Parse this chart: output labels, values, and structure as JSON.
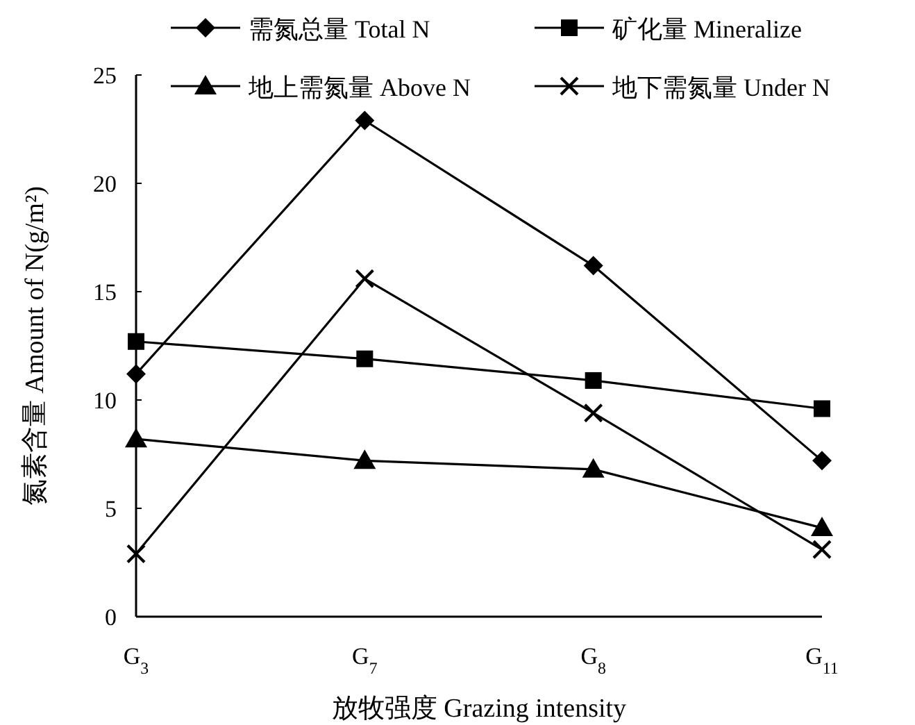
{
  "chart_data": {
    "type": "line",
    "xlabel": "放牧强度 Grazing intensity",
    "ylabel": "氮素含量 Amount of N(g/m²)",
    "categories": [
      "G$_{3}$",
      "G$_{7}$",
      "G$_{8}$",
      "G$_{11}$"
    ],
    "ylim": [
      0,
      25
    ],
    "yticks": [
      0,
      5,
      10,
      15,
      20,
      25
    ],
    "grid": false,
    "legend": "top",
    "line_style": "solid",
    "series": [
      {
        "name": "需氮总量 Total N",
        "color": "#000000",
        "marker": "diamond",
        "values": [
          11.2,
          22.9,
          16.2,
          7.2
        ]
      },
      {
        "name": "矿化量 Mineralize",
        "color": "#000000",
        "marker": "square",
        "values": [
          12.7,
          11.9,
          10.9,
          9.6
        ]
      },
      {
        "name": "地上需氮量 Above N",
        "color": "#000000",
        "marker": "triangle",
        "values": [
          8.2,
          7.2,
          6.8,
          4.1
        ]
      },
      {
        "name": "地下需氮量 Under N",
        "color": "#000000",
        "marker": "cross",
        "values": [
          2.9,
          15.6,
          9.4,
          3.1
        ]
      }
    ]
  }
}
